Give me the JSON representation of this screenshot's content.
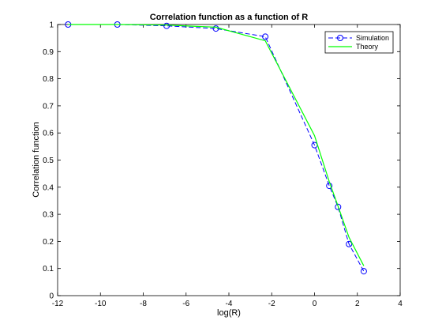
{
  "chart_data": {
    "type": "line",
    "title": "Correlation function as a function of R",
    "xlabel": "log(R)",
    "ylabel": "Correlation function",
    "xlim": [
      -12,
      4
    ],
    "ylim": [
      0,
      1
    ],
    "xticks": [
      -12,
      -10,
      -8,
      -6,
      -4,
      -2,
      0,
      2,
      4
    ],
    "yticks": [
      0,
      0.1,
      0.2,
      0.3,
      0.4,
      0.5,
      0.6,
      0.7,
      0.8,
      0.9,
      1
    ],
    "xtick_labels": [
      "-12",
      "-10",
      "-8",
      "-6",
      "-4",
      "-2",
      "0",
      "2",
      "4"
    ],
    "ytick_labels": [
      "0",
      "0.1",
      "0.2",
      "0.3",
      "0.4",
      "0.5",
      "0.6",
      "0.7",
      "0.8",
      "0.9",
      "1"
    ],
    "grid": false,
    "legend_position": "top-right",
    "series": [
      {
        "name": "Simulation",
        "color": "#0000ff",
        "line_style": "dashed",
        "marker": "circle",
        "x": [
          -11.51,
          -9.21,
          -6.91,
          -4.61,
          -2.3,
          0.0,
          0.69,
          1.1,
          1.61,
          2.3
        ],
        "y": [
          1.0,
          1.0,
          0.995,
          0.985,
          0.955,
          0.555,
          0.405,
          0.327,
          0.19,
          0.09
        ]
      },
      {
        "name": "Theory",
        "color": "#00ff00",
        "line_style": "solid",
        "marker": "none",
        "x": [
          -11.51,
          -9.21,
          -6.91,
          -4.61,
          -2.3,
          0.0,
          0.69,
          1.1,
          1.61,
          2.3
        ],
        "y": [
          1.0,
          1.0,
          0.998,
          0.99,
          0.94,
          0.59,
          0.42,
          0.33,
          0.215,
          0.11
        ]
      }
    ]
  }
}
